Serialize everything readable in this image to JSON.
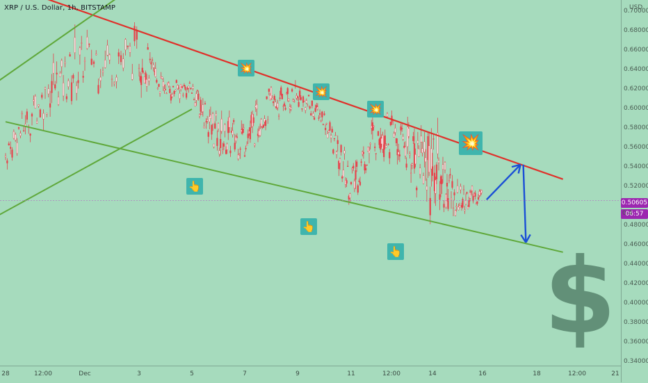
{
  "header": {
    "title": "XRP / U.S. Dollar, 1h, BITSTAMP"
  },
  "price_axis": {
    "unit": "USD",
    "ticks": [
      "0.70000",
      "0.68000",
      "0.66000",
      "0.64000",
      "0.62000",
      "0.60000",
      "0.58000",
      "0.56000",
      "0.54000",
      "0.52000",
      "0.50000",
      "0.48000",
      "0.46000",
      "0.44000",
      "0.42000",
      "0.40000",
      "0.38000",
      "0.36000",
      "0.34000"
    ],
    "last_price": "0.50605",
    "countdown": "06:57",
    "partial_tick": "0.4"
  },
  "time_axis": {
    "ticks": [
      "28",
      "12:00",
      "Dec",
      "3",
      "5",
      "7",
      "9",
      "11",
      "12:00",
      "14",
      "16",
      "18",
      "12:00",
      "21"
    ]
  },
  "markers": {
    "explosion": "💥",
    "pointer": "👆"
  },
  "decor": {
    "dollar_sign": "$"
  },
  "colors": {
    "background": "#a6dbbd",
    "resistance_line": "#e0302a",
    "support_line": "#5fa83a",
    "candles": "#e8404a",
    "projection_arrows": "#1a4fd6",
    "price_badge": "#9c27b0"
  },
  "chart_data": {
    "type": "candlestick",
    "title": "XRP / U.S. Dollar, 1h, BITSTAMP",
    "ylabel": "USD",
    "ylim": [
      0.34,
      0.7
    ],
    "x_range": [
      "Nov 28",
      "Dec 21"
    ],
    "last_price": 0.50605,
    "price_path": [
      {
        "x": "Nov 28",
        "low": 0.54,
        "high": 0.57
      },
      {
        "x": "Nov 29",
        "low": 0.59,
        "high": 0.64
      },
      {
        "x": "Nov 30",
        "low": 0.62,
        "high": 0.68
      },
      {
        "x": "Dec 1",
        "low": 0.63,
        "high": 0.68
      },
      {
        "x": "Dec 2",
        "low": 0.61,
        "high": 0.63
      },
      {
        "x": "Dec 3",
        "low": 0.61,
        "high": 0.63
      },
      {
        "x": "Dec 4",
        "low": 0.55,
        "high": 0.59
      },
      {
        "x": "Dec 5",
        "low": 0.55,
        "high": 0.59
      },
      {
        "x": "Dec 6",
        "low": 0.59,
        "high": 0.62
      },
      {
        "x": "Dec 7",
        "low": 0.6,
        "high": 0.625
      },
      {
        "x": "Dec 8",
        "low": 0.58,
        "high": 0.6
      },
      {
        "x": "Dec 9",
        "low": 0.5,
        "high": 0.54
      },
      {
        "x": "Dec 10",
        "low": 0.56,
        "high": 0.605
      },
      {
        "x": "Dec 11",
        "low": 0.54,
        "high": 0.58
      },
      {
        "x": "Dec 12",
        "low": 0.5,
        "high": 0.59
      },
      {
        "x": "Dec 13",
        "low": 0.49,
        "high": 0.52
      },
      {
        "x": "Dec 14",
        "low": 0.505,
        "high": 0.52
      }
    ],
    "trendlines": [
      {
        "name": "resistance",
        "color": "red",
        "from": {
          "x": "Nov 28",
          "y": 0.728
        },
        "to": {
          "x": "Dec 17",
          "y": 0.528
        }
      },
      {
        "name": "support",
        "color": "green",
        "from": {
          "x": "Nov 28",
          "y": 0.587
        },
        "to": {
          "x": "Dec 17",
          "y": 0.453
        }
      },
      {
        "name": "upper channel",
        "color": "green",
        "from": {
          "x": "Nov 27",
          "y": 0.615
        },
        "to": {
          "x": "Dec 1",
          "y": 0.73
        }
      },
      {
        "name": "lower channel",
        "color": "green",
        "from": {
          "x": "Nov 27",
          "y": 0.48
        },
        "to": {
          "x": "Dec 3",
          "y": 0.6
        }
      }
    ],
    "projection": [
      {
        "x": "Dec 14",
        "y": 0.507
      },
      {
        "x": "Dec 15",
        "y": 0.543
      },
      {
        "x": "Dec 15",
        "y": 0.463
      }
    ],
    "grid": false,
    "legend": "none"
  }
}
